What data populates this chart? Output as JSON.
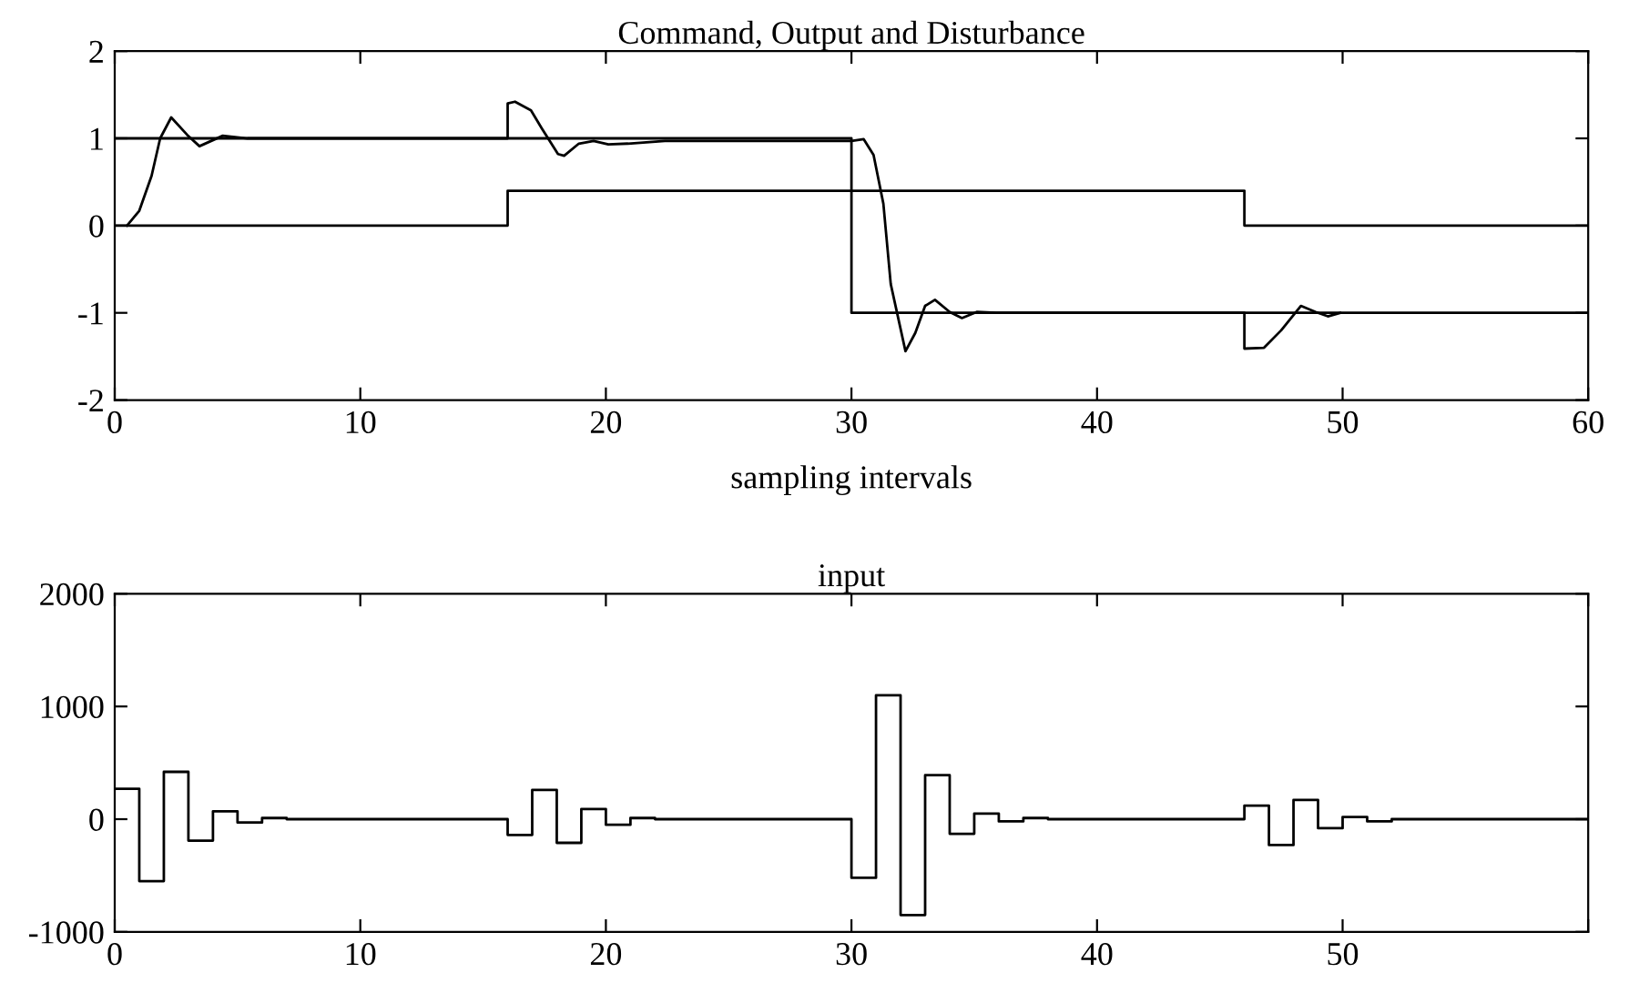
{
  "chart_data": [
    {
      "type": "line",
      "title": "Command, Output and Disturbance",
      "xlabel": "sampling intervals",
      "xlim": [
        0,
        60
      ],
      "ylim": [
        -2,
        2
      ],
      "xticks": [
        0,
        10,
        20,
        30,
        40,
        50,
        60
      ],
      "yticks": [
        -2,
        -1,
        0,
        1,
        2
      ],
      "marker": "none",
      "line_style": "solid",
      "grid": false,
      "legend": false,
      "series": [
        {
          "type": "step",
          "color": "#000000",
          "x": [
            0,
            30,
            60
          ],
          "values": [
            1,
            -1,
            -1
          ]
        },
        {
          "type": "step",
          "color": "#000000",
          "x": [
            0,
            16,
            46,
            60
          ],
          "values": [
            0,
            0.4,
            0,
            0
          ]
        },
        {
          "type": "line",
          "color": "#000000",
          "x": [
            0.5,
            1.0,
            1.5,
            1.85,
            2.3,
            2.95,
            3.45,
            4.4,
            5.4,
            16.0,
            16.0,
            16.3,
            16.95,
            17.4,
            18.05,
            18.3,
            18.9,
            19.5,
            20.1,
            20.9,
            22.4,
            30.0,
            30.5,
            30.9,
            31.3,
            31.6,
            32.2,
            32.6,
            33.0,
            33.4,
            34.0,
            34.5,
            35.1,
            35.9,
            46.0,
            46.0,
            46.8,
            47.5,
            48.3,
            48.9,
            49.4,
            49.9
          ],
          "values": [
            0,
            0.17,
            0.57,
            1.0,
            1.24,
            1.04,
            0.91,
            1.03,
            1.0,
            1.0,
            1.4,
            1.42,
            1.32,
            1.11,
            0.82,
            0.8,
            0.94,
            0.97,
            0.93,
            0.94,
            0.97,
            0.97,
            0.99,
            0.81,
            0.25,
            -0.67,
            -1.44,
            -1.23,
            -0.92,
            -0.85,
            -0.99,
            -1.06,
            -0.99,
            -1.0,
            -1.0,
            -1.41,
            -1.4,
            -1.2,
            -0.92,
            -0.99,
            -1.04,
            -1.0
          ]
        }
      ]
    },
    {
      "type": "step",
      "title": "input",
      "xlim": [
        0,
        60
      ],
      "ylim": [
        -1000,
        2000
      ],
      "xticks": [
        0,
        10,
        20,
        30,
        40,
        50,
        {
          "value": 60,
          "label": null
        }
      ],
      "yticks": [
        -1000,
        0,
        1000,
        2000
      ],
      "marker": "none",
      "line_style": "solid",
      "grid": false,
      "legend": false,
      "series": [
        {
          "color": "#000000",
          "x": [
            0,
            1,
            2,
            3,
            4,
            5,
            6,
            7,
            8,
            9,
            10,
            11,
            12,
            13,
            14,
            15,
            16,
            17,
            18,
            19,
            20,
            21,
            22,
            23,
            24,
            25,
            26,
            27,
            28,
            29,
            30,
            31,
            32,
            33,
            34,
            35,
            36,
            37,
            38,
            39,
            40,
            41,
            42,
            43,
            44,
            45,
            46,
            47,
            48,
            49,
            50,
            51,
            52,
            53,
            54,
            55,
            56,
            57,
            58,
            59,
            60
          ],
          "values": [
            270,
            -550,
            420,
            -190,
            70,
            -30,
            10,
            0,
            0,
            0,
            0,
            0,
            0,
            0,
            0,
            0,
            -140,
            260,
            -210,
            90,
            -50,
            10,
            0,
            0,
            0,
            0,
            0,
            0,
            0,
            0,
            -520,
            1100,
            -850,
            390,
            -130,
            50,
            -20,
            10,
            0,
            0,
            0,
            0,
            0,
            0,
            0,
            0,
            120,
            -230,
            170,
            -80,
            20,
            -20,
            0,
            0,
            0,
            0,
            0,
            0,
            0,
            0,
            0
          ]
        }
      ]
    }
  ]
}
